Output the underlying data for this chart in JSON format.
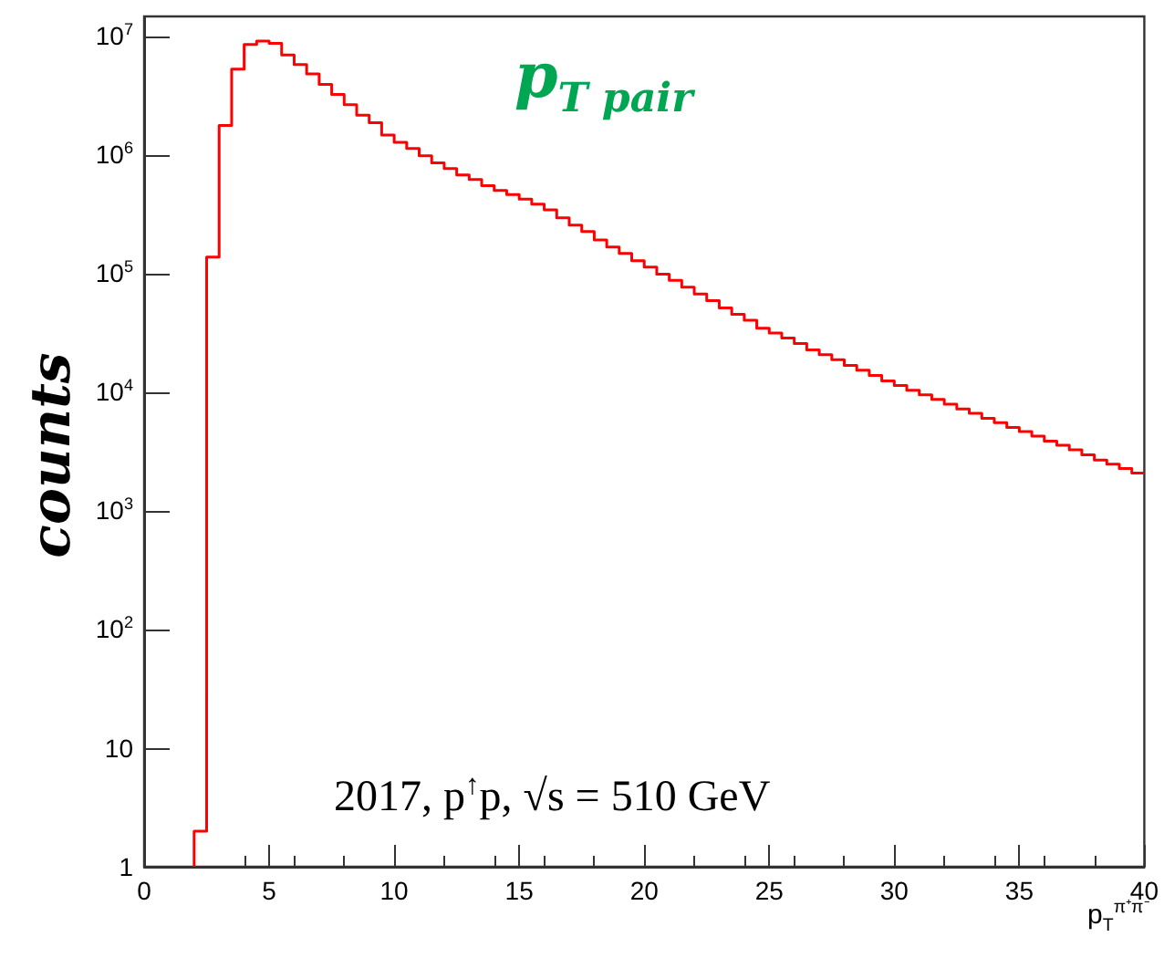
{
  "chart_data": {
    "type": "histogram",
    "title": "p$_{T pair}$",
    "xlabel": "p$_{T}$$^{π⁺π⁻}$",
    "ylabel": "counts",
    "annotations": [
      "2017, p$^{↑}$p, √s = 510 GeV"
    ],
    "color": "#ff0000",
    "bins": [
      2,
      2.5,
      3,
      3.5,
      4,
      4.5,
      5,
      5.5,
      6,
      6.5,
      7,
      7.5,
      8,
      8.5,
      9,
      9.5,
      10,
      10.5,
      11,
      11.5,
      12,
      12.5,
      13,
      13.5,
      14,
      14.5,
      15,
      15.5,
      16,
      16.5,
      17,
      17.5,
      18,
      18.5,
      19,
      19.5,
      20,
      20.5,
      21,
      21.5,
      22,
      22.5,
      23,
      23.5,
      24,
      24.5,
      25,
      25.5,
      26,
      26.5,
      27,
      27.5,
      28,
      28.5,
      29,
      29.5,
      30,
      30.5,
      31,
      31.5,
      32,
      32.5,
      33,
      33.5,
      34,
      34.5,
      35,
      35.5,
      36,
      36.5,
      37,
      37.5,
      38,
      38.5,
      39,
      39.5,
      40
    ],
    "values": [
      2,
      140000,
      1800000,
      5400000,
      8700000,
      9300000,
      8900000,
      7100000,
      5900000,
      4900000,
      4000000,
      3300000,
      2700000,
      2200000,
      1900000,
      1500000,
      1300000,
      1150000,
      1000000,
      870000,
      780000,
      690000,
      630000,
      560000,
      510000,
      470000,
      430000,
      390000,
      350000,
      300000,
      260000,
      230000,
      195000,
      170000,
      150000,
      130000,
      115000,
      100000,
      89000,
      78000,
      68000,
      60000,
      52000,
      46000,
      41000,
      35000,
      32000,
      29000,
      26000,
      23000,
      21000,
      19000,
      17000,
      15500,
      14000,
      12600,
      11500,
      10500,
      9600,
      8800,
      8000,
      7300,
      6700,
      6100,
      5600,
      5100,
      4700,
      4300,
      3900,
      3600,
      3300,
      3000,
      2700,
      2500,
      2300,
      2100
    ],
    "xlim": [
      0,
      40
    ],
    "xticks": [
      0,
      5,
      10,
      15,
      20,
      25,
      30,
      35,
      40
    ],
    "ylim": [
      1,
      15000000
    ],
    "yticks": [
      1,
      10,
      {
        "value": 100,
        "label": "10$^{2}$"
      },
      {
        "value": 1000,
        "label": "10$^{3}$"
      },
      {
        "value": 10000,
        "label": "10$^{4}$"
      },
      {
        "value": 100000,
        "label": "10$^{5}$"
      },
      {
        "value": 1000000,
        "label": "10$^{6}$"
      },
      {
        "value": 10000000,
        "label": "10$^{7}$"
      }
    ],
    "log": "y",
    "grid": false
  }
}
